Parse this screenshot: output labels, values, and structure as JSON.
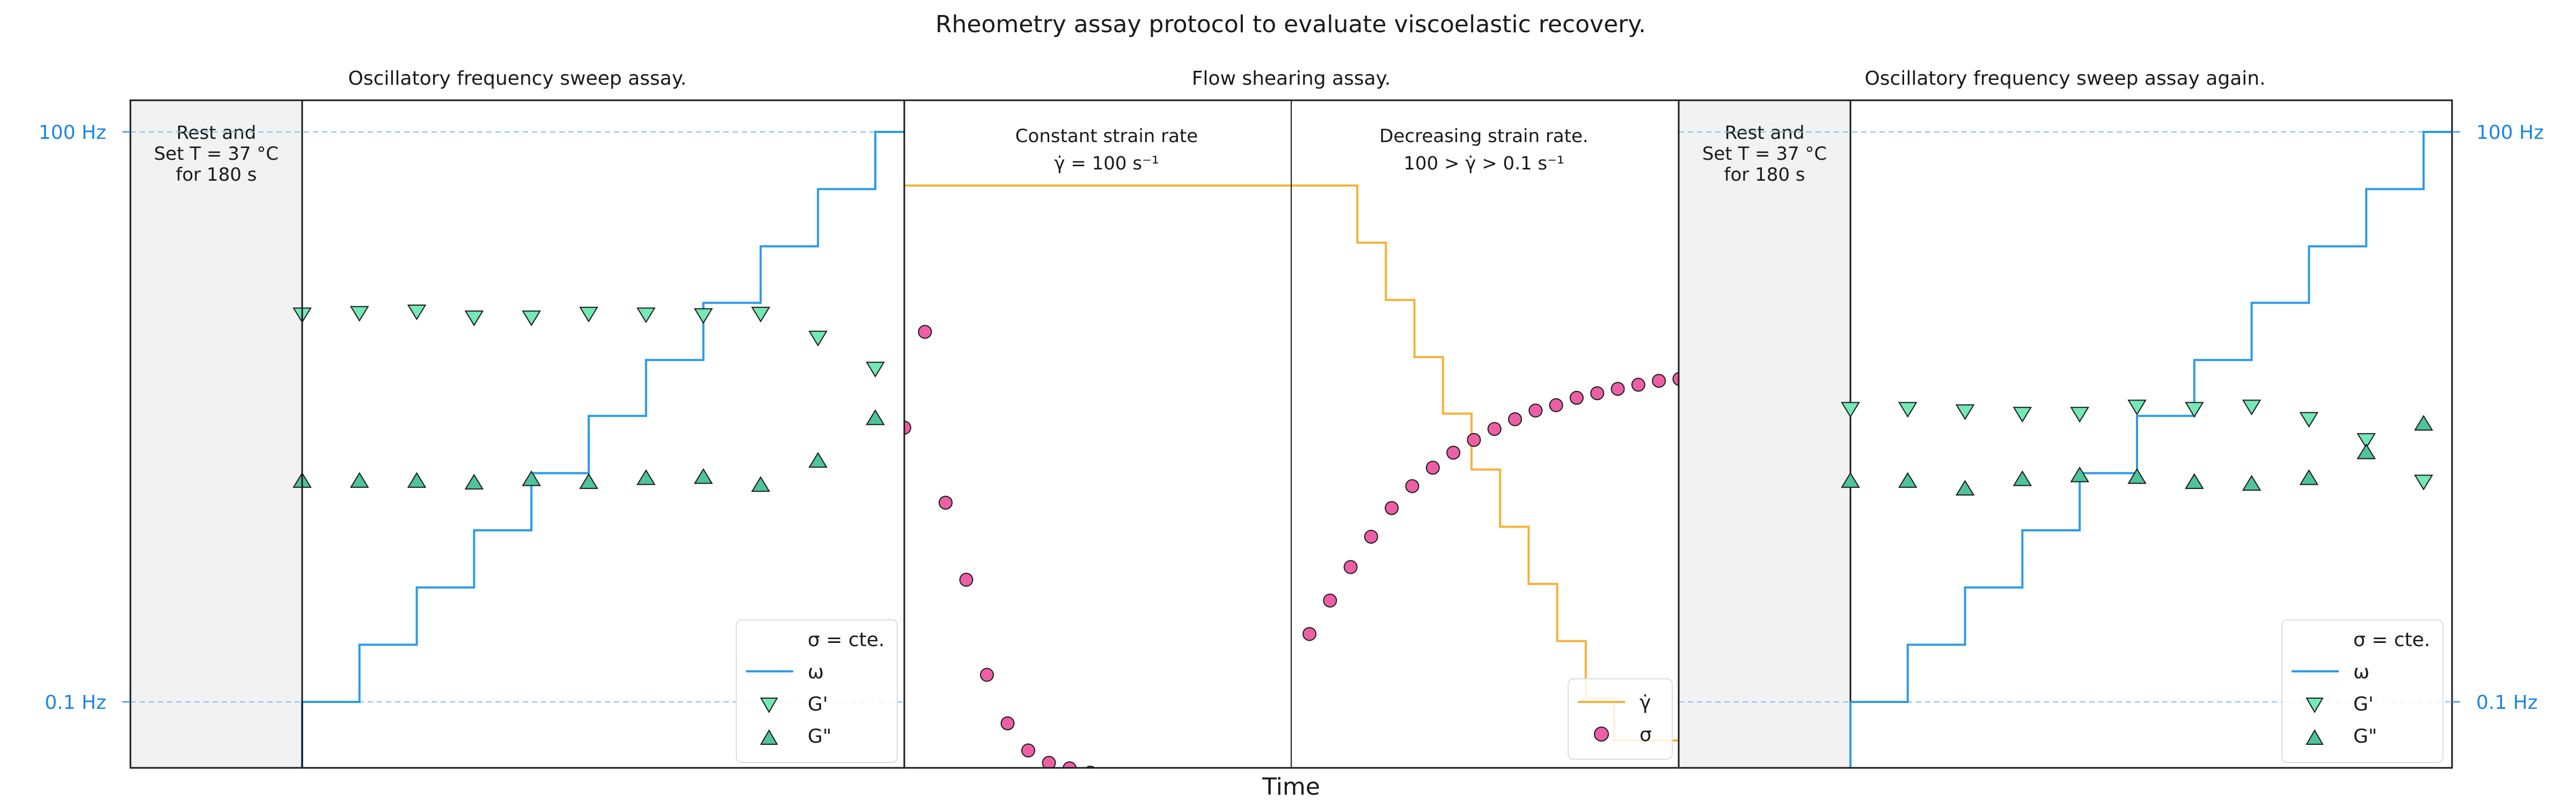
{
  "chart_data": {
    "type": "line",
    "title": "Rheometry assay protocol to evaluate viscoelastic recovery.",
    "xlabel": "Time",
    "colors": {
      "omega": "#2b9be8",
      "gamma": "#f6b13a",
      "g_prime": "#74e8b6",
      "g_double_prime": "#4fc39a",
      "sigma": "#ec5fa5",
      "rest_fill": "#f2f2f2",
      "dashed_grid": "#7ec2f0",
      "tick_label": "#1a86e6"
    },
    "yaxis": {
      "scale": "log",
      "range": [
        0.03,
        210
      ],
      "ticks": [
        {
          "value": 0.1,
          "label": "0.1 Hz"
        },
        {
          "value": 100,
          "label": "100 Hz"
        }
      ]
    },
    "sections": [
      {
        "title": "Oscillatory frequency sweep assay.",
        "rest_note": [
          "Rest and",
          "Set T = 37 °C",
          "for 180 s"
        ],
        "legend": [
          "σ = cte.",
          "ω",
          "G'",
          "G\""
        ],
        "omega_steps": [
          0.1,
          0.2,
          0.4,
          0.8,
          1.6,
          3.2,
          6.3,
          12.6,
          25,
          50,
          100
        ],
        "g_prime": [
          11,
          11.2,
          11.4,
          10.6,
          10.6,
          11.1,
          11.0,
          10.9,
          11.1,
          8.3,
          5.7
        ],
        "g_double_prime": [
          1.45,
          1.45,
          1.45,
          1.42,
          1.48,
          1.43,
          1.5,
          1.52,
          1.38,
          1.85,
          3.1
        ]
      },
      {
        "title": "Flow shearing assay.",
        "subsections": [
          {
            "label": "Constant strain rate",
            "sublabel": "γ̇ = 100  s⁻¹"
          },
          {
            "label": "Decreasing strain rate.",
            "sublabel": "100 > γ̇ > 0.1  s⁻¹"
          }
        ],
        "legend": [
          "γ̇",
          "σ"
        ],
        "gamma_constant": 100,
        "gamma_steps": [
          100,
          50,
          25,
          12.5,
          6.3,
          3.2,
          1.6,
          0.8,
          0.4,
          0.2,
          0.12
        ],
        "sigma_constant_phase": [
          3.6,
          11.5,
          1.45,
          0.57,
          0.18,
          0.1,
          0.072,
          0.062,
          0.058,
          0.055,
          0.052,
          0.051,
          0.051,
          0.051,
          0.05,
          0.05,
          0.05,
          0.05,
          0.05
        ],
        "sigma_decreasing_phase": [
          0.2,
          0.3,
          0.45,
          0.65,
          0.92,
          1.2,
          1.5,
          1.8,
          2.1,
          2.4,
          2.7,
          3.0,
          3.2,
          3.5,
          3.7,
          3.9,
          4.1,
          4.3,
          4.4
        ]
      },
      {
        "title": "Oscillatory frequency sweep assay again.",
        "rest_note": [
          "Rest and",
          "Set T = 37 °C",
          "for 180 s"
        ],
        "legend": [
          "σ = cte.",
          "ω",
          "G'",
          "G\""
        ],
        "omega_steps": [
          0.1,
          0.2,
          0.4,
          0.8,
          1.6,
          3.2,
          6.3,
          12.6,
          25,
          50,
          100
        ],
        "g_prime": [
          3.5,
          3.5,
          3.4,
          3.3,
          3.3,
          3.6,
          3.5,
          3.6,
          3.1,
          2.4,
          1.45
        ],
        "g_double_prime": [
          1.45,
          1.45,
          1.32,
          1.48,
          1.55,
          1.52,
          1.43,
          1.4,
          1.5,
          2.05,
          2.9
        ]
      }
    ]
  }
}
